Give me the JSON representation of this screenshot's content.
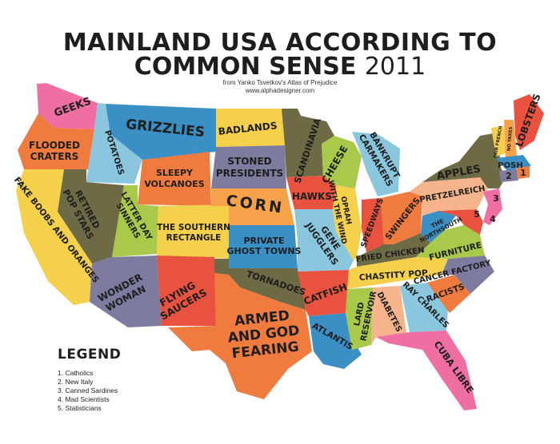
{
  "title": {
    "line1": "MAINLAND USA ACCORDING TO",
    "line2_bold": "COMMON SENSE",
    "line2_year": "2011"
  },
  "source": {
    "line1": "from Yanko Tsvetkov's Atlas of Prejudice",
    "line2": "www.alphadesigner.com"
  },
  "legend": {
    "heading": "LEGEND",
    "items": [
      "1. Catholics",
      "2. New Italy",
      "3. Canned Sardines",
      "4. Mad Scientists",
      "5. Statisticians"
    ]
  },
  "regions": {
    "wa": "GEEKS",
    "or": "FLOODED CRATERS",
    "ca": "FAKE BOOBS AND ORANGES",
    "id": "POTATOES",
    "nv": "RETIRED POP STARS",
    "mt": "GRIZZLIES",
    "wy": "SLEEPY VOLCANOES",
    "ut": "LATTER DAY SINNERS",
    "co": "THE SOUTHERN RECTANGLE",
    "az": "WONDER WOMAN",
    "nm": "FLYING SAUCERS",
    "nd": "BADLANDS",
    "sd": "STONED PRESIDENTS",
    "ne": "CORN",
    "ks": "PRIVATE GHOST TOWNS",
    "ok": "TORNADOES",
    "tx": "ARMED AND GOD FEARING",
    "mn": "SCANDINAVIA",
    "ia": "HAWKS",
    "mo": "GENE JUGGLERS",
    "ar": "CATFISH",
    "la": "ATLANTIS",
    "wi": "CHEESE",
    "il": "OPRAH WITH THE WIND",
    "mi": "BANKRUPT CARMAKERS",
    "in": "SPEEDWAYS",
    "oh": "SWINGERS",
    "ky": "FRIED CHICKEN",
    "tn": "CHASTITY POP",
    "ms": "LARD RESERVOIR",
    "al": "DIABETES",
    "ga": "RAY CHARLES",
    "fl": "CUBA LIBRE",
    "sc": "RACISTS",
    "nc": "CANCER FACTORY",
    "va": "FURNITURE",
    "wv": "THE NORTHSOUTH",
    "pa": "PRETZELREICH",
    "ny": "APPLES",
    "vt": "FAIR FRENCH",
    "nh": "NO TAXES",
    "me": "LOBSTERS",
    "ma": "POSH",
    "num1": "1",
    "num2": "2",
    "num3": "3",
    "num4": "4",
    "num5": "5"
  },
  "colors": {
    "pink": "#f06fa3",
    "orange": "#f07b3f",
    "light_orange": "#f5a24b",
    "yellow": "#f5d04a",
    "blue": "#3a8fc4",
    "light_blue": "#8ac7de",
    "olive": "#6e6a45",
    "green": "#a8c94a",
    "gray_purple": "#7d7b9e",
    "red": "#e8523f",
    "salmon": "#f6b48c"
  }
}
